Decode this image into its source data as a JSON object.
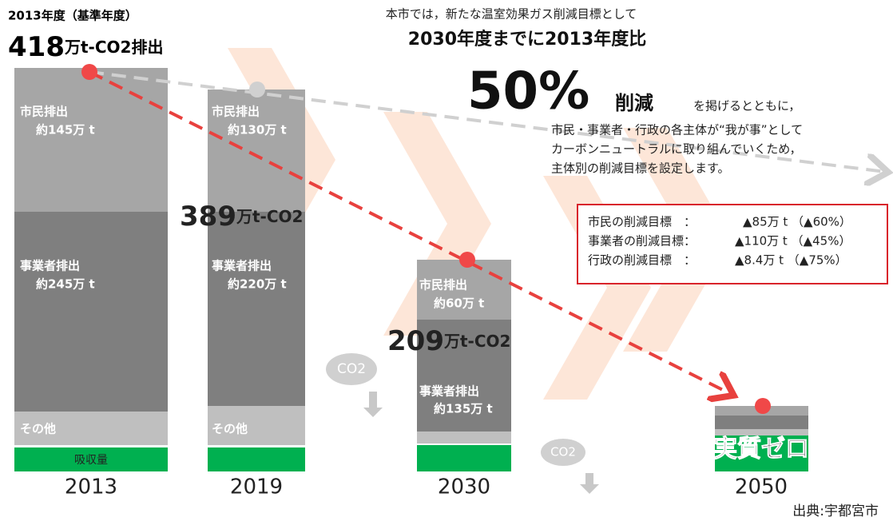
{
  "header": {
    "base_year": "2013年度（基準年度）",
    "base_value": "418",
    "base_unit": "万t-CO2排出"
  },
  "intro": {
    "line1": "本市では，新たな温室効果ガス削減目標として",
    "line2": "2030年度までに2013年度比",
    "percent": "50%",
    "reduce": "削減",
    "tail": "を掲げるとともに，",
    "paragraph": [
      "市民・事業者・行政の各主体が“我が事”として",
      "カーボンニュートラルに取り組んでいくため，",
      "主体別の削減目標を設定します。"
    ]
  },
  "targets": [
    {
      "label": "市民の削減目標　：",
      "value": "▲85万 t （▲60%）"
    },
    {
      "label": "事業者の削減目標：",
      "value": "▲110万 t （▲45%）"
    },
    {
      "label": "行政の削減目標　：",
      "value": "▲8.4万 t （▲75%）"
    }
  ],
  "bars": [
    {
      "year": "2013",
      "citizen": "市民排出",
      "citizen_value": "約145万 t",
      "business": "事業者排出",
      "business_value": "約245万 t",
      "other": "その他",
      "absorb": "吸収量"
    },
    {
      "year": "2019",
      "citizen": "市民排出",
      "citizen_value": "約130万 t",
      "business": "事業者排出",
      "business_value": "約220万 t",
      "other": "その他",
      "total": "389",
      "total_unit": "万t-CO2"
    },
    {
      "year": "2030",
      "citizen": "市民排出",
      "citizen_value": "約60万 t",
      "business": "事業者排出",
      "business_value": "約135万 t",
      "total": "209",
      "total_unit": "万t-CO2"
    },
    {
      "year": "2050",
      "total": "実質ゼロ"
    }
  ],
  "co2": "CO2",
  "source": "出典:宇都宮市"
}
